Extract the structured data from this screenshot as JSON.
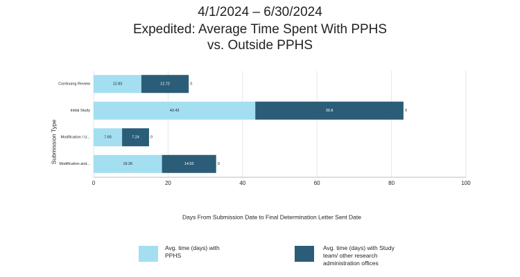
{
  "chart_data": {
    "type": "stacked-bar-horizontal",
    "title": [
      "4/1/2024 – 6/30/2024",
      "Expedited: Average Time Spent With PPHS",
      "vs. Outside PPHS"
    ],
    "xlabel": "Days From Submission Date to Final Determination Letter Sent Date",
    "ylabel": "Submission Type",
    "categories": [
      "Continuing Review",
      "Initial Study",
      "Modification / U...",
      "Modification and..."
    ],
    "series": [
      {
        "name": "Avg. time (days) with PPHS",
        "color": "#a3dff1",
        "values": [
          12.83,
          43.43,
          7.65,
          18.36
        ]
      },
      {
        "name": "Avg. time (days) with Study team/ other research administration offices",
        "color": "#2b5d78",
        "values": [
          12.72,
          39.8,
          7.24,
          14.55
        ]
      },
      {
        "values": [
          0,
          0,
          0,
          0
        ]
      }
    ],
    "xlim": [
      0,
      100
    ],
    "xticks": [
      0,
      20,
      40,
      60,
      80,
      100
    ],
    "grid": true
  }
}
